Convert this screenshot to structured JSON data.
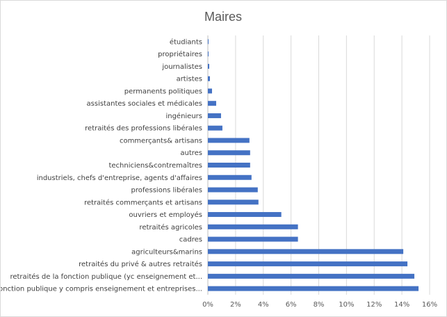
{
  "chart_data": {
    "type": "bar",
    "orientation": "horizontal",
    "title": "Maires",
    "xlabel": "",
    "ylabel": "",
    "categories": [
      "étudiants",
      "propriétaires",
      "journalistes",
      "artistes",
      "permanents politiques",
      "assistantes sociales et médicales",
      "ingénieurs",
      "retraités des professions libérales",
      "commerçants& artisans",
      "autres",
      "techniciens&contremaîtres",
      "industriels, chefs d'entreprise, agents d'affaires",
      "professions libérales",
      "retraités commerçants et artisans",
      "ouvriers et employés",
      "retraités agricoles",
      "cadres",
      "agriculteurs&marins",
      "retraités du privé & autres retraités",
      "retraités de la fonction publique (yc enseignement et...",
      "fonction publique y compris enseignement et entreprises..."
    ],
    "values": [
      0.05,
      0.05,
      0.1,
      0.15,
      0.3,
      0.6,
      0.95,
      1.05,
      3.0,
      3.05,
      3.05,
      3.15,
      3.6,
      3.65,
      5.3,
      6.5,
      6.5,
      14.1,
      14.4,
      14.9,
      15.2
    ],
    "xlim": [
      0,
      16
    ],
    "ticks": [
      "0%",
      "2%",
      "4%",
      "6%",
      "8%",
      "10%",
      "12%",
      "14%",
      "16%"
    ],
    "tick_values": [
      0,
      2,
      4,
      6,
      8,
      10,
      12,
      14,
      16
    ],
    "grid": true,
    "bar_color": "#4472c4",
    "grid_color": "#d9d9d9"
  }
}
